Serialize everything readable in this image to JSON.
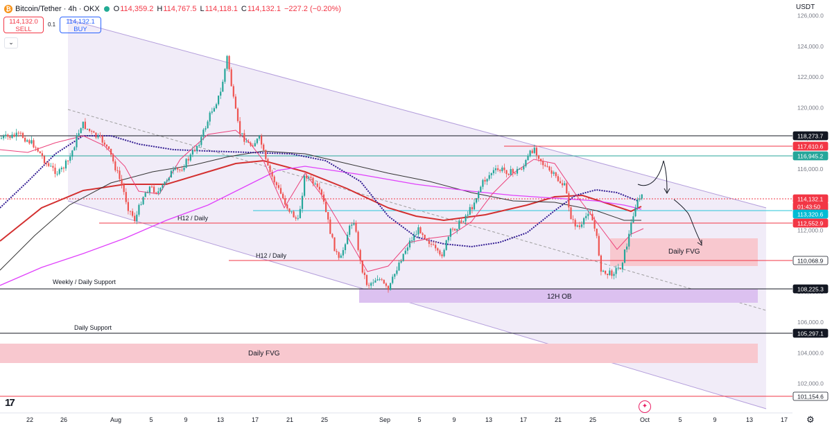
{
  "header": {
    "symbol": "Bitcoin/Tether · 4h · OKX",
    "logo_letter": "₿",
    "ohlc": [
      {
        "label": "O",
        "value": "114,359.2"
      },
      {
        "label": "H",
        "value": "114,767.5"
      },
      {
        "label": "L",
        "value": "114,118.1"
      },
      {
        "label": "C",
        "value": "114,132.1"
      },
      {
        "label": "",
        "value": "−227.2 (−0.20%)"
      }
    ],
    "status_color": "#22ab94"
  },
  "trade": {
    "sell_price": "114,132.0",
    "sell_label": "SELL",
    "spread": "0.1",
    "buy_price": "114,132.1",
    "buy_label": "BUY",
    "dropdown_icon": "chevron-down-icon"
  },
  "currency": "USDT",
  "price_scale": {
    "ticks": [
      "126,000.0",
      "124,000.0",
      "122,000.0",
      "120,000.0",
      "118,000.0",
      "116,000.0",
      "114,000.0",
      "112,000.0",
      "110,000.0",
      "108,000.0",
      "106,000.0",
      "104,000.0",
      "102,000.0"
    ],
    "tags": [
      {
        "text": "118,273.7",
        "bg": "#131722",
        "color": "#ffffff"
      },
      {
        "text": "117,610.6",
        "bg": "#f23645",
        "color": "#ffffff"
      },
      {
        "text": "116,945.2",
        "bg": "#26a69a",
        "color": "#ffffff"
      },
      {
        "text": "114,132.1",
        "bg": "#f23645",
        "color": "#ffffff"
      },
      {
        "text": "01:43:50",
        "bg": "#f23645",
        "color": "#ffffff"
      },
      {
        "text": "113,320.6",
        "bg": "#00bcd4",
        "color": "#ffffff"
      },
      {
        "text": "112,552.9",
        "bg": "#f23645",
        "color": "#ffffff"
      },
      {
        "text": "110,068.9",
        "bg": "#ffffff",
        "color": "#131722"
      },
      {
        "text": "108,225.3",
        "bg": "#131722",
        "color": "#ffffff"
      },
      {
        "text": "105,297.1",
        "bg": "#131722",
        "color": "#ffffff"
      },
      {
        "text": "101,154.6",
        "bg": "#ffffff",
        "color": "#131722"
      }
    ]
  },
  "time_axis": [
    "22",
    "26",
    "Aug",
    "5",
    "9",
    "13",
    "17",
    "21",
    "25",
    "Sep",
    "5",
    "9",
    "13",
    "17",
    "21",
    "25",
    "Oct",
    "5",
    "9",
    "13",
    "17"
  ],
  "annotations": {
    "h12_daily_1": "H12 / Daily",
    "h12_daily_2": "H12 / Daily",
    "weekly_daily_support": "Weekly / Daily Support",
    "daily_support": "Daily Support",
    "daily_fvg_lower": "Daily FVG",
    "daily_fvg_right": "Daily FVG",
    "ob_12h": "12H OB"
  },
  "colors": {
    "up": "#26a69a",
    "down": "#ef5350",
    "ma_red": "#d32f2f",
    "ma_black": "#333333",
    "ma_magenta": "#e040fb",
    "ma_blue_dotted": "#311b92",
    "fvg_fill": "#f8c8cf",
    "ob_fill": "#d5b3ec",
    "channel_fill": "#efeaf7"
  },
  "footer": {
    "tv_logo": "17",
    "ai_icon": "sparkle-icon",
    "settings_icon": "gear-icon"
  }
}
